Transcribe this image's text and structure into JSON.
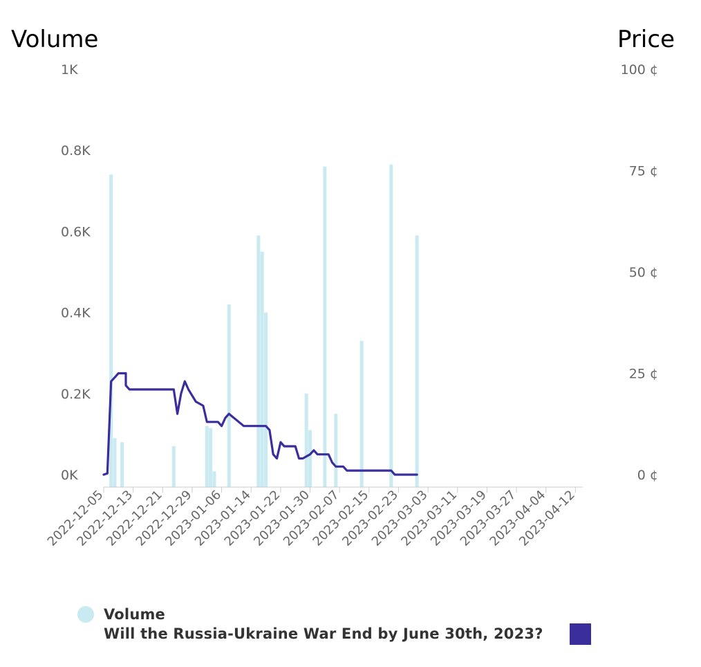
{
  "chart_data": {
    "type": "bar+line",
    "y_left_label": "Volume",
    "y_right_label": "Price",
    "y_left_ticks": [
      "0K",
      "0.2K",
      "0.4K",
      "0.6K",
      "0.8K",
      "1K"
    ],
    "y_right_ticks": [
      "0 ¢",
      "25 ¢",
      "50 ¢",
      "75 ¢",
      "100 ¢"
    ],
    "y_left_range": [
      0,
      1000
    ],
    "y_right_range": [
      0,
      100
    ],
    "x_range": [
      "2022-12-05",
      "2023-04-14"
    ],
    "x_ticks": [
      "2022-12-05",
      "2022-12-13",
      "2022-12-21",
      "2022-12-29",
      "2023-01-06",
      "2023-01-14",
      "2023-01-22",
      "2023-01-30",
      "2023-02-07",
      "2023-02-15",
      "2023-02-23",
      "2023-03-03",
      "2023-03-11",
      "2023-03-19",
      "2023-03-27",
      "2023-04-04",
      "2023-04-12"
    ],
    "colors": {
      "volume": "#c9eaf1",
      "price": "#3a2d9c"
    },
    "volume_series": {
      "name": "Volume",
      "points": [
        [
          "2022-12-07",
          740
        ],
        [
          "2022-12-08",
          90
        ],
        [
          "2022-12-10",
          80
        ],
        [
          "2022-12-24",
          70
        ],
        [
          "2023-01-02",
          120
        ],
        [
          "2023-01-03",
          115
        ],
        [
          "2023-01-04",
          8
        ],
        [
          "2023-01-08",
          420
        ],
        [
          "2023-01-16",
          590
        ],
        [
          "2023-01-17",
          550
        ],
        [
          "2023-01-18",
          400
        ],
        [
          "2023-01-29",
          200
        ],
        [
          "2023-01-30",
          110
        ],
        [
          "2023-02-03",
          760
        ],
        [
          "2023-02-06",
          150
        ],
        [
          "2023-02-13",
          330
        ],
        [
          "2023-02-21",
          765
        ],
        [
          "2023-02-28",
          590
        ]
      ]
    },
    "price_series": {
      "name": "Will the Russia-Ukraine War End by June 30th, 2023?",
      "points": [
        [
          "2022-12-05",
          0
        ],
        [
          "2022-12-06",
          0.3
        ],
        [
          "2022-12-07",
          23
        ],
        [
          "2022-12-08",
          24
        ],
        [
          "2022-12-09",
          25
        ],
        [
          "2022-12-11",
          25
        ],
        [
          "2022-12-11",
          22
        ],
        [
          "2022-12-12",
          21
        ],
        [
          "2022-12-24",
          21
        ],
        [
          "2022-12-25",
          15
        ],
        [
          "2022-12-26",
          20
        ],
        [
          "2022-12-27",
          23
        ],
        [
          "2022-12-28",
          21
        ],
        [
          "2022-12-30",
          18
        ],
        [
          "2023-01-01",
          17
        ],
        [
          "2023-01-02",
          13
        ],
        [
          "2023-01-05",
          13
        ],
        [
          "2023-01-06",
          12
        ],
        [
          "2023-01-07",
          14
        ],
        [
          "2023-01-08",
          15
        ],
        [
          "2023-01-12",
          12
        ],
        [
          "2023-01-18",
          12
        ],
        [
          "2023-01-19",
          11
        ],
        [
          "2023-01-20",
          5
        ],
        [
          "2023-01-21",
          4
        ],
        [
          "2023-01-22",
          8
        ],
        [
          "2023-01-23",
          7
        ],
        [
          "2023-01-26",
          7
        ],
        [
          "2023-01-27",
          4
        ],
        [
          "2023-01-28",
          4
        ],
        [
          "2023-01-30",
          5
        ],
        [
          "2023-01-31",
          6
        ],
        [
          "2023-02-01",
          5
        ],
        [
          "2023-02-04",
          5
        ],
        [
          "2023-02-05",
          3
        ],
        [
          "2023-02-06",
          2
        ],
        [
          "2023-02-07",
          2
        ],
        [
          "2023-02-08",
          2
        ],
        [
          "2023-02-09",
          1
        ],
        [
          "2023-02-10",
          1
        ],
        [
          "2023-02-11",
          1
        ],
        [
          "2023-02-15",
          1
        ],
        [
          "2023-02-16",
          1
        ],
        [
          "2023-02-21",
          1
        ],
        [
          "2023-02-22",
          0
        ],
        [
          "2023-02-28",
          0
        ]
      ]
    },
    "legend_placement": "bottom",
    "grid": false
  }
}
